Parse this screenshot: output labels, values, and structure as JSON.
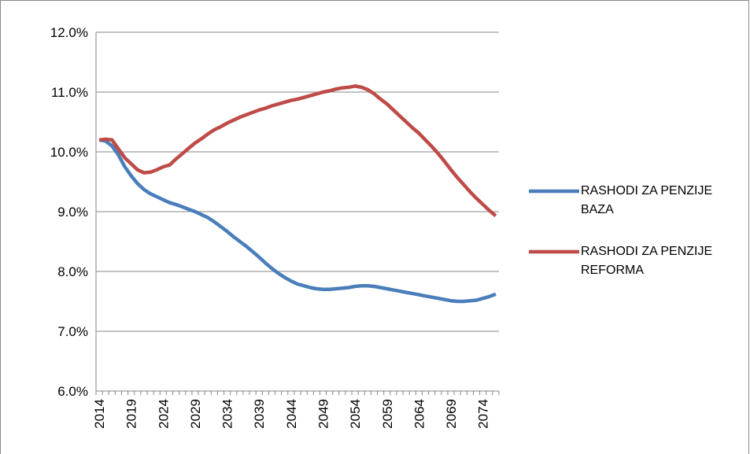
{
  "chart_data": {
    "type": "line",
    "categories": [
      "2014",
      null,
      null,
      null,
      null,
      "2019",
      null,
      null,
      null,
      null,
      "2024",
      null,
      null,
      null,
      null,
      "2029",
      null,
      null,
      null,
      null,
      "2034",
      null,
      null,
      null,
      null,
      "2039",
      null,
      null,
      null,
      null,
      "2044",
      null,
      null,
      null,
      null,
      "2049",
      null,
      null,
      null,
      null,
      "2054",
      null,
      null,
      null,
      null,
      "2059",
      null,
      null,
      null,
      null,
      "2064",
      null,
      null,
      null,
      null,
      "2069",
      null,
      null,
      null,
      null,
      "2074",
      null,
      null
    ],
    "series": [
      {
        "name": "RASHODI ZA PENZIJE BAZA",
        "color": "#4a7ebb",
        "values": [
          10.2,
          10.18,
          10.1,
          9.95,
          9.75,
          9.6,
          9.47,
          9.37,
          9.3,
          9.25,
          9.2,
          9.15,
          9.12,
          9.08,
          9.04,
          9.0,
          8.95,
          8.9,
          8.83,
          8.75,
          8.67,
          8.58,
          8.5,
          8.42,
          8.33,
          8.24,
          8.14,
          8.05,
          7.97,
          7.9,
          7.84,
          7.79,
          7.76,
          7.73,
          7.71,
          7.7,
          7.7,
          7.71,
          7.72,
          7.73,
          7.75,
          7.76,
          7.76,
          7.75,
          7.73,
          7.71,
          7.69,
          7.67,
          7.65,
          7.63,
          7.61,
          7.59,
          7.57,
          7.55,
          7.53,
          7.51,
          7.5,
          7.5,
          7.51,
          7.52,
          7.55,
          7.58,
          7.62
        ]
      },
      {
        "name": "RASHODI ZA PENZIJE REFORMA",
        "color": "#be4b48",
        "values": [
          10.2,
          10.21,
          10.2,
          10.05,
          9.9,
          9.8,
          9.7,
          9.65,
          9.66,
          9.7,
          9.75,
          9.78,
          9.88,
          9.97,
          10.06,
          10.15,
          10.22,
          10.3,
          10.37,
          10.42,
          10.48,
          10.53,
          10.58,
          10.62,
          10.66,
          10.7,
          10.73,
          10.77,
          10.8,
          10.83,
          10.86,
          10.88,
          10.91,
          10.94,
          10.97,
          11.0,
          11.02,
          11.05,
          11.07,
          11.08,
          11.1,
          11.08,
          11.04,
          10.97,
          10.88,
          10.8,
          10.7,
          10.6,
          10.5,
          10.4,
          10.31,
          10.2,
          10.09,
          9.97,
          9.84,
          9.7,
          9.57,
          9.45,
          9.33,
          9.22,
          9.12,
          9.02,
          8.93
        ]
      }
    ],
    "ylim": [
      6,
      12
    ],
    "yticks": [
      {
        "value": 6,
        "label": "6.0%"
      },
      {
        "value": 7,
        "label": "7.0%"
      },
      {
        "value": 8,
        "label": "8.0%"
      },
      {
        "value": 9,
        "label": "9.0%"
      },
      {
        "value": 10,
        "label": "10.0%"
      },
      {
        "value": 11,
        "label": "11.0%"
      },
      {
        "value": 12,
        "label": "12.0%"
      }
    ],
    "grid": true,
    "legend": "right"
  }
}
